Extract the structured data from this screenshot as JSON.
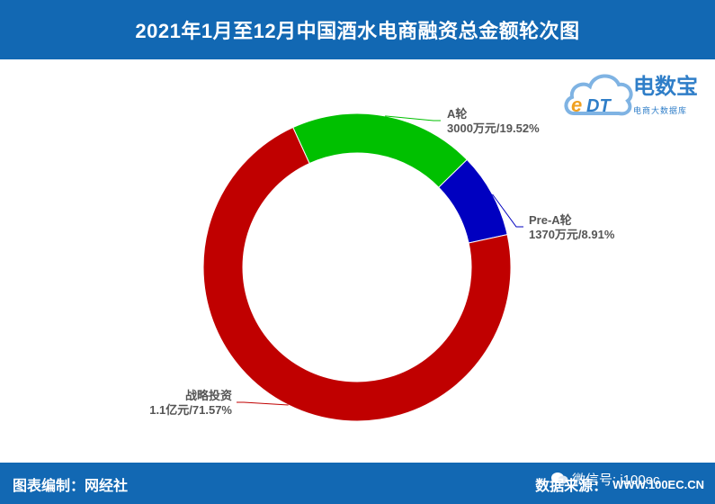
{
  "header": {
    "title": "2021年1月至12月中国酒水电商融资总金额轮次图"
  },
  "logo": {
    "name": "电数宝",
    "sub": "电商大数据库",
    "mark": "eDT"
  },
  "footer": {
    "editor": "图表编制：网经社",
    "source_label": "数据来源：",
    "source_value": "WWW.100EC.CN",
    "wechat": "微信号: i100ec"
  },
  "chart_data": {
    "type": "pie",
    "subtype": "donut",
    "title": "2021年1月至12月中国酒水电商融资总金额轮次图",
    "slices": [
      {
        "name": "A轮",
        "amount": "3000万元",
        "percent": 19.52,
        "color": "#00c000",
        "label": "3000万元/19.52%"
      },
      {
        "name": "Pre-A轮",
        "amount": "1370万元",
        "percent": 8.91,
        "color": "#0000c0",
        "label": "1370万元/8.91%"
      },
      {
        "name": "战略投资",
        "amount": "1.1亿元",
        "percent": 71.57,
        "color": "#c00000",
        "label": "1.1亿元/71.57%"
      }
    ]
  }
}
